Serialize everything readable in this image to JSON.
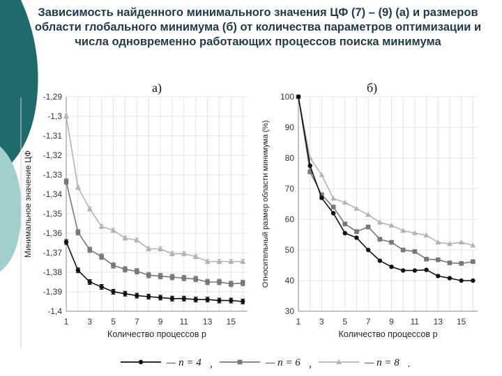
{
  "slide": {
    "title": "Зависимость найденного минимального значения ЦФ (7) – (9) (а) и размеров области глобального минимума (б) от количества параметров оптимизации  и числа одновременно работающих процессов поиска минимума"
  },
  "chart_data": [
    {
      "type": "line",
      "panel_label": "а)",
      "xlabel": "Количество процессов p",
      "ylabel": "Минимальное значение ЦФ",
      "x": [
        1,
        2,
        3,
        4,
        5,
        6,
        7,
        8,
        9,
        10,
        11,
        12,
        13,
        14,
        15,
        16
      ],
      "x_ticks": [
        1,
        3,
        5,
        7,
        9,
        11,
        13,
        15
      ],
      "x_tick_labels": [
        "1",
        "3",
        "5",
        "7",
        "9",
        "11",
        "13",
        "15"
      ],
      "ylim": [
        -1.4,
        -1.29
      ],
      "y_ticks": [
        -1.29,
        -1.3,
        -1.31,
        -1.32,
        -1.33,
        -1.34,
        -1.35,
        -1.36,
        -1.37,
        -1.38,
        -1.39,
        -1.4
      ],
      "y_tick_labels": [
        "-1,29",
        "-1,3",
        "-1,31",
        "-1,32",
        "-1,33",
        "-1,34",
        "-1,35",
        "-1,36",
        "-1,37",
        "-1,38",
        "-1,39",
        "-1,4"
      ],
      "grid": true,
      "series": [
        {
          "name": "n = 4",
          "color": "#111111",
          "marker": "circle",
          "values": [
            -1.3645,
            -1.379,
            -1.385,
            -1.3875,
            -1.39,
            -1.391,
            -1.392,
            -1.3925,
            -1.393,
            -1.3935,
            -1.3935,
            -1.394,
            -1.394,
            -1.3945,
            -1.3945,
            -1.395
          ]
        },
        {
          "name": "n = 6",
          "color": "#777777",
          "marker": "square",
          "values": [
            -1.3335,
            -1.3595,
            -1.3685,
            -1.372,
            -1.3765,
            -1.3785,
            -1.3795,
            -1.3815,
            -1.382,
            -1.3825,
            -1.383,
            -1.3835,
            -1.385,
            -1.385,
            -1.386,
            -1.3855
          ]
        },
        {
          "name": "n = 8",
          "color": "#b3b3b3",
          "marker": "triangle",
          "values": [
            -1.3,
            -1.3365,
            -1.3475,
            -1.3565,
            -1.3585,
            -1.3625,
            -1.3635,
            -1.368,
            -1.368,
            -1.3705,
            -1.3705,
            -1.372,
            -1.3745,
            -1.3745,
            -1.3745,
            -1.3745
          ]
        }
      ]
    },
    {
      "type": "line",
      "panel_label": "б)",
      "xlabel": "Количество процессов p",
      "ylabel": "Относительный размер области минимума (%)",
      "x": [
        1,
        2,
        3,
        4,
        5,
        6,
        7,
        8,
        9,
        10,
        11,
        12,
        13,
        14,
        15,
        16
      ],
      "x_ticks": [
        1,
        3,
        5,
        7,
        9,
        11,
        13,
        15
      ],
      "x_tick_labels": [
        "1",
        "3",
        "5",
        "7",
        "9",
        "11",
        "13",
        "15"
      ],
      "ylim": [
        30,
        100
      ],
      "y_ticks": [
        100,
        90,
        80,
        70,
        60,
        50,
        40,
        30
      ],
      "y_tick_labels": [
        "100",
        "90",
        "80",
        "70",
        "60",
        "50",
        "40",
        "30"
      ],
      "grid": true,
      "series": [
        {
          "name": "n = 4",
          "color": "#111111",
          "marker": "circle",
          "values": [
            100,
            77.5,
            67,
            62,
            55.5,
            54,
            50,
            46.5,
            44.5,
            43.3,
            43.3,
            43.5,
            41.5,
            40.8,
            40,
            40
          ]
        },
        {
          "name": "n = 6",
          "color": "#777777",
          "marker": "square",
          "values": [
            100,
            75.5,
            68,
            64,
            58.5,
            56,
            57.5,
            53.5,
            52.5,
            50,
            49.5,
            47,
            46.8,
            45.8,
            45.6,
            46.2
          ]
        },
        {
          "name": "n = 8",
          "color": "#b3b3b3",
          "marker": "triangle",
          "values": [
            100,
            80,
            74.5,
            66.8,
            65.5,
            63.5,
            61.5,
            59,
            58,
            56.3,
            55.5,
            54.8,
            52.5,
            52,
            52.5,
            51.5
          ]
        }
      ]
    }
  ],
  "legend": {
    "separator": ",",
    "terminator": ".",
    "items": [
      {
        "label": "n = 4",
        "color": "#111111",
        "marker": "circle"
      },
      {
        "label": "n = 6",
        "color": "#777777",
        "marker": "square"
      },
      {
        "label": "n = 8",
        "color": "#b3b3b3",
        "marker": "triangle"
      }
    ]
  },
  "theme": {
    "accent_dark": "#1f6a6a",
    "accent_light": "#9fd0cc",
    "grid": "#e4e4e4"
  }
}
